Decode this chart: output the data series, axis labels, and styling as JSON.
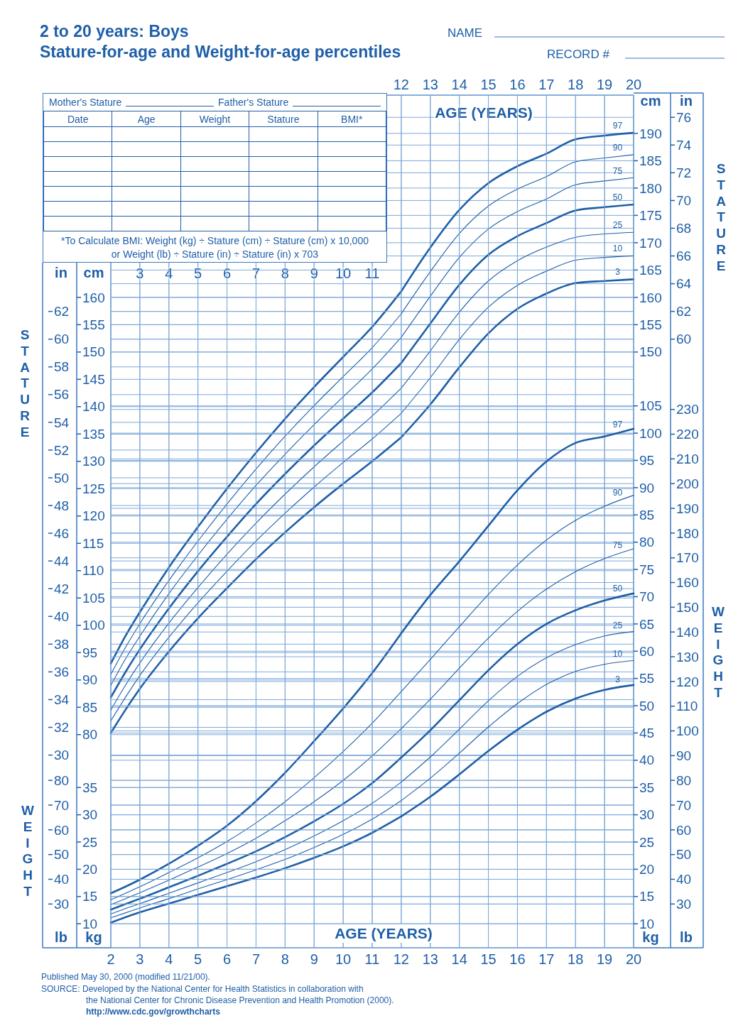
{
  "chart_data": [
    {
      "type": "line",
      "title": "2 to 20 years: Boys",
      "subtitle": "Stature-for-age and Weight-for-age percentiles",
      "ylabel": "cm",
      "y2label": "in",
      "xlim": [
        2,
        20
      ],
      "xticks": [
        3,
        4,
        5,
        6,
        7,
        8,
        9,
        10,
        11
      ],
      "ylim": [
        41,
        197
      ],
      "yticks": [
        80,
        85,
        90,
        95,
        100,
        105,
        110,
        115,
        120,
        125,
        130,
        135,
        140,
        145,
        150,
        155,
        160
      ],
      "y2lim": [
        16.1,
        77.6
      ],
      "y2ticks": [
        30,
        32,
        34,
        36,
        38,
        40,
        42,
        44,
        46,
        48,
        50,
        52,
        54,
        56,
        58,
        60,
        62
      ],
      "grid": true,
      "x": [
        2,
        2.5,
        3,
        4,
        5,
        6,
        7,
        8,
        9,
        10,
        11,
        12
      ],
      "series": [
        {
          "color": "#1f5fa8",
          "values": [
            93.0,
            98.0,
            102.4,
            110.6,
            118.0,
            125.0,
            131.6,
            137.8,
            143.6,
            149.1,
            154.6,
            161.1
          ]
        },
        {
          "color": "#1f5fa8",
          "values": [
            91.0,
            95.9,
            100.3,
            108.2,
            115.4,
            122.2,
            128.6,
            134.6,
            140.2,
            145.5,
            150.8,
            157.0
          ]
        },
        {
          "color": "#1f5fa8",
          "values": [
            89.0,
            93.8,
            98.0,
            105.8,
            112.8,
            119.4,
            125.6,
            131.3,
            136.7,
            141.8,
            146.9,
            152.7
          ]
        },
        {
          "color": "#1f5fa8",
          "values": [
            86.8,
            91.4,
            95.6,
            103.1,
            109.9,
            116.2,
            122.2,
            127.7,
            132.9,
            137.8,
            142.6,
            148.0
          ]
        },
        {
          "color": "#1f5fa8",
          "values": [
            84.5,
            89.0,
            93.1,
            100.4,
            106.9,
            113.0,
            118.7,
            124.0,
            129.0,
            133.7,
            138.3,
            143.4
          ]
        },
        {
          "color": "#1f5fa8",
          "values": [
            82.5,
            86.8,
            90.8,
            97.8,
            104.1,
            109.9,
            115.4,
            120.5,
            125.3,
            129.8,
            134.1,
            138.8
          ]
        },
        {
          "color": "#1f5fa8",
          "values": [
            80.3,
            84.5,
            88.4,
            95.2,
            101.3,
            106.8,
            112.1,
            117.0,
            121.6,
            125.9,
            130.0,
            134.4
          ]
        }
      ],
      "annotations": [
        "NAME",
        "RECORD #",
        "Mother's Stature",
        "Father's Stature",
        "Date",
        "Age",
        "Weight",
        "Stature",
        "BMI*",
        "*To Calculate BMI: Weight (kg) ÷ Stature (cm) ÷ Stature (cm) x 10,000",
        "or Weight (lb) ÷ Stature (in) ÷ Stature (in) x 703",
        "STATURE",
        "STATURE"
      ]
    },
    {
      "type": "line",
      "xlabel": "AGE (YEARS)",
      "ylabel": "cm",
      "y2label": "in",
      "xlim": [
        2,
        20
      ],
      "xticks": [
        12,
        13,
        14,
        15,
        16,
        17,
        18,
        19,
        20
      ],
      "ylim": [
        41,
        197
      ],
      "yticks": [
        150,
        155,
        160,
        165,
        170,
        175,
        180,
        185,
        190
      ],
      "y2lim": [
        16.1,
        77.6
      ],
      "y2ticks": [
        60,
        62,
        64,
        66,
        68,
        70,
        72,
        74,
        76
      ],
      "grid": true,
      "x": [
        12,
        13,
        14,
        15,
        16,
        17,
        18,
        19,
        20
      ],
      "series": [
        {
          "name": "97",
          "color": "#1f5fa8",
          "values": [
            161.1,
            169.1,
            176.0,
            180.9,
            184.0,
            186.3,
            188.9,
            189.6,
            190.1
          ]
        },
        {
          "name": "90",
          "color": "#1f5fa8",
          "values": [
            157.0,
            164.7,
            171.7,
            176.7,
            179.8,
            182.1,
            184.8,
            185.5,
            186.1
          ]
        },
        {
          "name": "75",
          "color": "#1f5fa8",
          "values": [
            152.7,
            160.2,
            167.3,
            172.5,
            175.7,
            178.0,
            180.6,
            181.3,
            181.9
          ]
        },
        {
          "name": "50",
          "color": "#1f5fa8",
          "values": [
            148.0,
            155.2,
            162.3,
            167.8,
            171.2,
            173.6,
            175.9,
            176.5,
            177.0
          ]
        },
        {
          "name": "25",
          "color": "#1f5fa8",
          "values": [
            143.4,
            150.2,
            157.3,
            163.0,
            166.7,
            169.2,
            171.0,
            171.6,
            171.9
          ]
        },
        {
          "name": "10",
          "color": "#1f5fa8",
          "values": [
            138.8,
            145.3,
            152.3,
            158.2,
            162.2,
            164.8,
            166.8,
            167.3,
            167.6
          ]
        },
        {
          "name": "3",
          "color": "#1f5fa8",
          "values": [
            134.4,
            140.4,
            147.2,
            153.4,
            157.9,
            160.7,
            162.6,
            163.0,
            163.3
          ]
        }
      ]
    },
    {
      "type": "line",
      "ylabel": "kg",
      "y2label": "lb",
      "tick_labels": "y",
      "xlim": [
        2,
        20
      ],
      "ylim": [
        5.6,
        162
      ],
      "yticks": [
        10,
        15,
        20,
        25,
        30,
        35
      ],
      "y2lim": [
        12.3,
        357.1
      ],
      "y2ticks": [
        30,
        40,
        50,
        60,
        70,
        80
      ],
      "grid": "y",
      "x": [
        2,
        2.5,
        3,
        4,
        5,
        6,
        7,
        8,
        9,
        10,
        11,
        12
      ],
      "series": [
        {
          "color": "#1f5fa8",
          "values": [
            15.6,
            16.8,
            18.1,
            21.0,
            24.3,
            28.0,
            32.5,
            37.7,
            43.5,
            49.5,
            56.0,
            63.3
          ]
        },
        {
          "color": "#1f5fa8",
          "values": [
            14.4,
            15.6,
            16.8,
            19.4,
            22.1,
            25.1,
            28.5,
            32.4,
            36.8,
            41.6,
            46.8,
            52.6
          ]
        },
        {
          "color": "#1f5fa8",
          "values": [
            13.5,
            14.6,
            15.7,
            18.0,
            20.4,
            22.9,
            25.7,
            28.9,
            32.4,
            36.3,
            40.8,
            45.8
          ]
        },
        {
          "color": "#1f5fa8",
          "values": [
            12.6,
            13.6,
            14.6,
            16.7,
            18.8,
            21.0,
            23.3,
            25.9,
            28.8,
            32.0,
            35.8,
            40.5
          ]
        },
        {
          "color": "#1f5fa8",
          "values": [
            11.8,
            12.8,
            13.7,
            15.6,
            17.5,
            19.4,
            21.4,
            23.6,
            26.1,
            28.9,
            32.1,
            36.0
          ]
        },
        {
          "color": "#1f5fa8",
          "values": [
            11.1,
            12.0,
            12.9,
            14.6,
            16.4,
            18.1,
            19.9,
            21.8,
            24.0,
            26.4,
            29.2,
            32.6
          ]
        },
        {
          "color": "#1f5fa8",
          "values": [
            10.2,
            11.2,
            12.1,
            13.7,
            15.3,
            16.9,
            18.5,
            20.2,
            22.1,
            24.2,
            26.7,
            29.7
          ]
        }
      ]
    },
    {
      "type": "line",
      "xlabel": "AGE (YEARS)",
      "ylabel": "kg",
      "y2label": "lb",
      "xlim": [
        2,
        20
      ],
      "xticks": [
        2,
        3,
        4,
        5,
        6,
        7,
        8,
        9,
        10,
        11,
        12,
        13,
        14,
        15,
        16,
        17,
        18,
        19,
        20
      ],
      "ylim": [
        5.6,
        162
      ],
      "yticks": [
        10,
        15,
        20,
        25,
        30,
        35,
        40,
        45,
        50,
        55,
        60,
        65,
        70,
        75,
        80,
        85,
        90,
        95,
        100,
        105
      ],
      "y2lim": [
        12.3,
        357.1
      ],
      "y2ticks": [
        30,
        40,
        50,
        60,
        70,
        80,
        90,
        100,
        110,
        120,
        130,
        140,
        150,
        160,
        170,
        180,
        190,
        200,
        210,
        220,
        230
      ],
      "grid": true,
      "x": [
        12,
        13,
        14,
        15,
        16,
        17,
        18,
        19,
        20
      ],
      "series": [
        {
          "name": "97",
          "color": "#1f5fa8",
          "values": [
            63.3,
            70.3,
            76.5,
            83.0,
            89.5,
            94.8,
            98.2,
            99.4,
            100.8
          ]
        },
        {
          "name": "90",
          "color": "#1f5fa8",
          "values": [
            52.6,
            58.5,
            64.5,
            70.4,
            75.8,
            80.4,
            84.0,
            86.6,
            88.6
          ]
        },
        {
          "name": "75",
          "color": "#1f5fa8",
          "values": [
            45.8,
            51.2,
            56.9,
            62.4,
            67.3,
            71.4,
            74.6,
            77.0,
            78.8
          ]
        },
        {
          "name": "50",
          "color": "#1f5fa8",
          "values": [
            40.5,
            45.5,
            51.0,
            56.5,
            61.3,
            65.0,
            67.5,
            69.3,
            70.6
          ]
        },
        {
          "name": "25",
          "color": "#1f5fa8",
          "values": [
            36.0,
            40.6,
            45.7,
            50.9,
            55.4,
            58.8,
            61.2,
            62.8,
            63.6
          ]
        },
        {
          "name": "10",
          "color": "#1f5fa8",
          "values": [
            32.6,
            36.7,
            41.3,
            46.1,
            50.4,
            53.9,
            56.3,
            57.6,
            58.3
          ]
        },
        {
          "name": "3",
          "color": "#1f5fa8",
          "values": [
            29.7,
            33.3,
            37.4,
            41.7,
            45.6,
            48.9,
            51.3,
            52.9,
            53.8
          ]
        }
      ],
      "annotations": [
        "WEIGHT",
        "WEIGHT",
        "Published May 30, 2000 (modified 11/21/00).",
        "SOURCE: Developed by the National Center for Health Statistics in collaboration with",
        "the National Center for Chronic Disease Prevention and Health Promotion (2000).",
        "http://www.cdc.gov/growthcharts"
      ]
    }
  ]
}
